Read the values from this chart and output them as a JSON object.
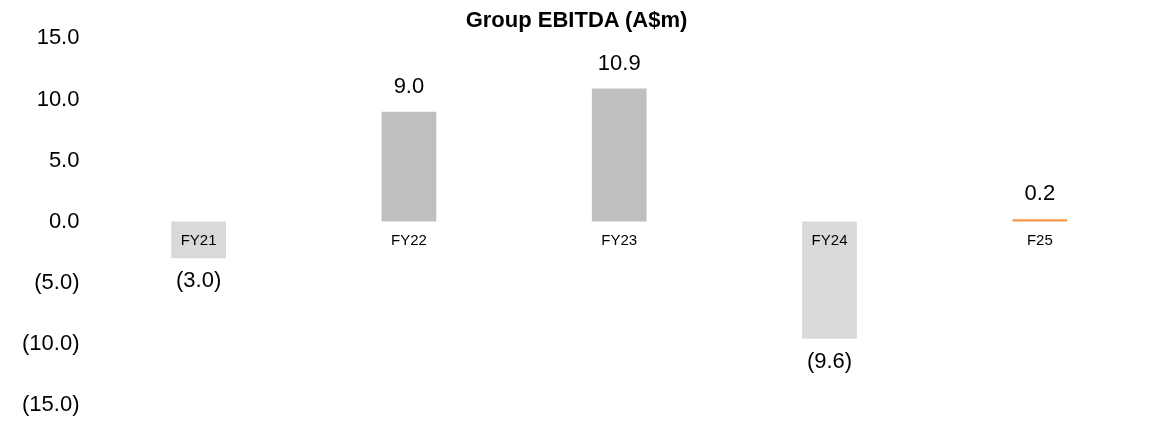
{
  "chart_data": {
    "type": "bar",
    "title": "Group EBITDA (A$m)",
    "categories": [
      "FY21",
      "FY22",
      "FY23",
      "FY24",
      "F25"
    ],
    "values": [
      -3.0,
      9.0,
      10.9,
      -9.6,
      0.2
    ],
    "colors": [
      "#d9d9d9",
      "#bfbfbf",
      "#bfbfbf",
      "#d9d9d9",
      "#f79646"
    ],
    "value_labels": [
      "(3.0)",
      "9.0",
      "10.9",
      "(9.6)",
      "0.2"
    ],
    "ylim": [
      -15,
      15
    ],
    "yticks": [
      {
        "value": -15,
        "label": "(15.0)"
      },
      {
        "value": -10,
        "label": "(10.0)"
      },
      {
        "value": -5,
        "label": "(5.0)"
      },
      {
        "value": 0,
        "label": "0.0"
      },
      {
        "value": 5,
        "label": "5.0"
      },
      {
        "value": 10,
        "label": "10.0"
      },
      {
        "value": 15,
        "label": "15.0"
      }
    ],
    "grid": false,
    "legend": false
  }
}
